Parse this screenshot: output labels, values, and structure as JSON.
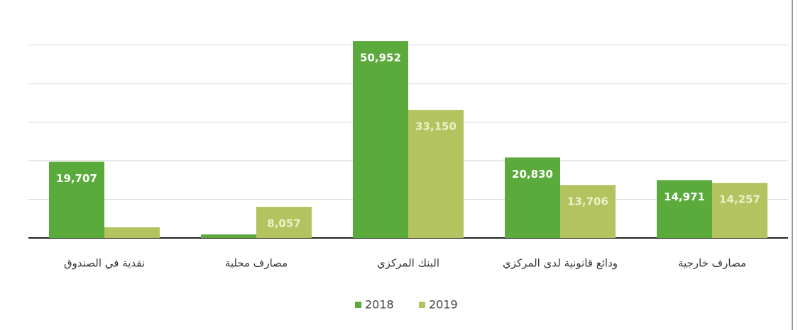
{
  "chart_data": {
    "type": "bar",
    "categories": [
      "نقدية في الصندوق",
      "مصارف محلية",
      "البنك المركزي",
      "ودائع قانونية لدى المركزي",
      "مصارف خارجية"
    ],
    "series": [
      {
        "name": "2018",
        "color": "#5aab3c",
        "values": [
          19707,
          900,
          50952,
          20830,
          14971
        ],
        "value_labels": [
          "19,707",
          null,
          "50,952",
          "20,830",
          "14,971"
        ]
      },
      {
        "name": "2019",
        "color": "#b3c35f",
        "values": [
          2750,
          8057,
          33150,
          13706,
          14257
        ],
        "value_labels": [
          null,
          "8,057",
          "33,150",
          "13,706",
          "14,257"
        ]
      }
    ],
    "ylim": [
      0,
      55000
    ],
    "yticks": [
      0,
      10000,
      20000,
      30000,
      40000,
      50000
    ],
    "grid": true,
    "legend": "bottom"
  }
}
